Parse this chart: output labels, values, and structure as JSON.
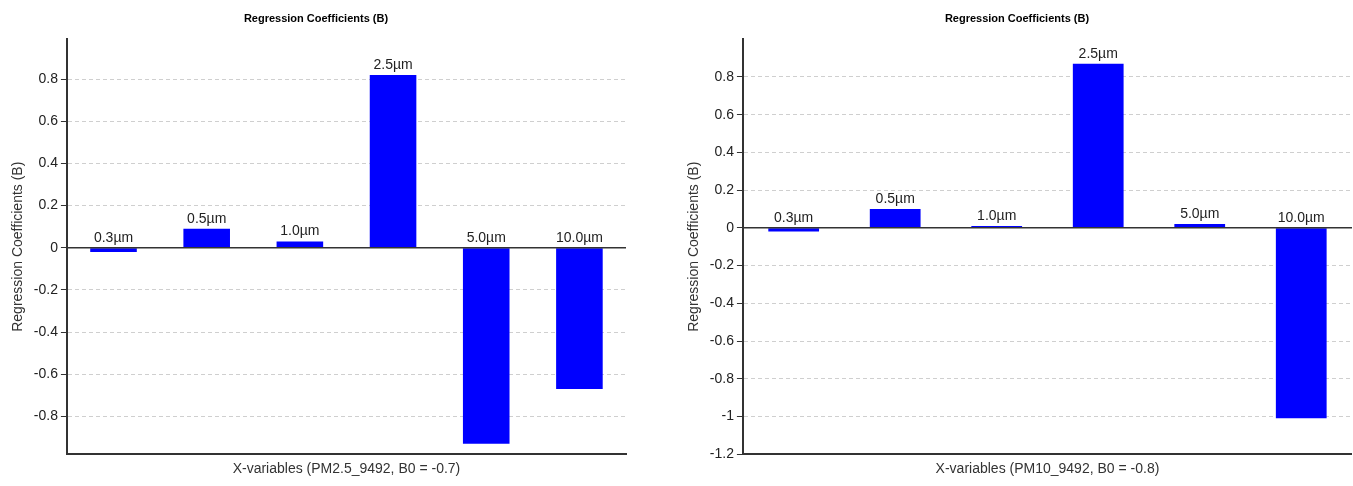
{
  "chart_data": [
    {
      "type": "bar",
      "title": "Regression Coefficients (B)",
      "ylabel": "Regression Coefficients (B)",
      "xlabel": "X-variables (PM2.5_9492, B0 = -0.7)",
      "categories": [
        "0.3µm",
        "0.5µm",
        "1.0µm",
        "2.5µm",
        "5.0µm",
        "10.0µm"
      ],
      "values": [
        -0.02,
        0.09,
        0.03,
        0.82,
        -0.93,
        -0.67
      ],
      "color": "#0000ff",
      "ylim": [
        -0.98,
        0.99
      ],
      "yticks": [
        -0.8,
        -0.6,
        -0.4,
        -0.2,
        0,
        0.2,
        0.4,
        0.6,
        0.8
      ],
      "grid": "y",
      "tick_labels": "y"
    },
    {
      "type": "bar",
      "title": "Regression Coefficients (B)",
      "ylabel": "Regression Coefficients (B)",
      "xlabel": "X-variables (PM10_9492, B0 = -0.8)",
      "categories": [
        "0.3µm",
        "0.5µm",
        "1.0µm",
        "2.5µm",
        "5.0µm",
        "10.0µm"
      ],
      "values": [
        -0.02,
        0.1,
        0.01,
        0.87,
        0.02,
        -1.01
      ],
      "color": "#0000ff",
      "ylim": [
        -1.2,
        1.0
      ],
      "yticks": [
        -1.2,
        -1,
        -0.8,
        -0.6,
        -0.4,
        -0.2,
        0,
        0.2,
        0.4,
        0.6,
        0.8
      ],
      "grid": "y",
      "tick_labels": "y"
    }
  ]
}
